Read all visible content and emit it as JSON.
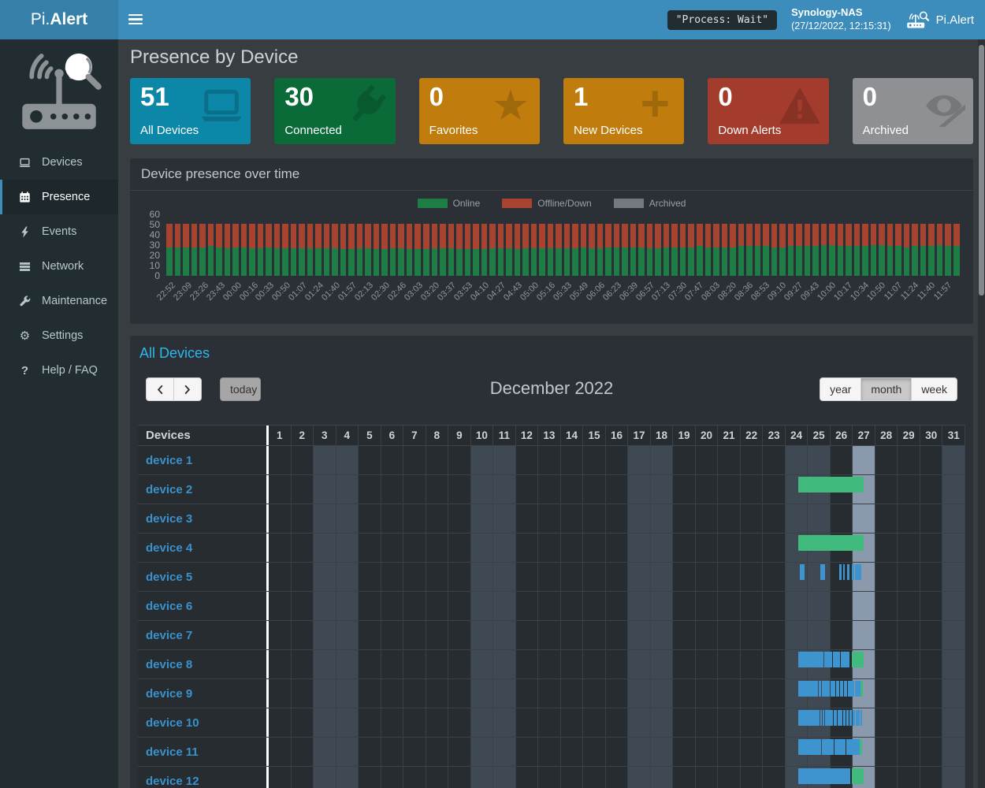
{
  "navbar": {
    "brand_prefix": "Pi.",
    "brand_suffix": "Alert",
    "process_status": "\"Process: Wait\"",
    "host_name": "Synology-NAS",
    "host_timestamp": "(27/12/2022, 12:15:31)",
    "app_name": "Pi.Alert"
  },
  "sidebar": {
    "items": [
      {
        "label": "Devices",
        "icon": "laptop-icon",
        "active": false
      },
      {
        "label": "Presence",
        "icon": "calendar-icon",
        "active": true
      },
      {
        "label": "Events",
        "icon": "bolt-icon",
        "active": false
      },
      {
        "label": "Network",
        "icon": "network-icon",
        "active": false
      },
      {
        "label": "Maintenance",
        "icon": "wrench-icon",
        "active": false
      },
      {
        "label": "Settings",
        "icon": "gear-icon",
        "active": false
      },
      {
        "label": "Help / FAQ",
        "icon": "question-icon",
        "active": false
      }
    ]
  },
  "page_title": "Presence by Device",
  "summary_cards": [
    {
      "value": "51",
      "label": "All Devices",
      "color": "#0d87a7",
      "icon": "laptop-icon"
    },
    {
      "value": "30",
      "label": "Connected",
      "color": "#0a6b38",
      "icon": "plug-icon"
    },
    {
      "value": "0",
      "label": "Favorites",
      "color": "#c07d0d",
      "icon": "star-icon"
    },
    {
      "value": "1",
      "label": "New Devices",
      "color": "#c07d0d",
      "icon": "plus-icon"
    },
    {
      "value": "0",
      "label": "Down Alerts",
      "color": "#a43c2d",
      "icon": "warning-icon"
    },
    {
      "value": "0",
      "label": "Archived",
      "color": "#8f9093",
      "icon": "eye-slash-icon"
    }
  ],
  "chart_data": {
    "type": "bar",
    "stacked": true,
    "title": "Device presence over time",
    "legend": [
      {
        "label": "Online",
        "color": "#1e7d45"
      },
      {
        "label": "Offline/Down",
        "color": "#a8432f"
      },
      {
        "label": "Archived",
        "color": "#75797d"
      }
    ],
    "y_ticks": [
      60,
      50,
      40,
      30,
      20,
      10,
      0
    ],
    "ylim": [
      0,
      60
    ],
    "stack_total": 51,
    "x_tick_labels": [
      "22:52",
      "23:09",
      "23:26",
      "23:43",
      "00:00",
      "00:16",
      "00:33",
      "00:50",
      "01:07",
      "01:24",
      "01:40",
      "01:57",
      "02:13",
      "02:30",
      "02:46",
      "03:03",
      "03:20",
      "03:37",
      "03:53",
      "04:10",
      "04:27",
      "04:43",
      "05:00",
      "05:16",
      "05:33",
      "05:49",
      "06:06",
      "06:23",
      "06:39",
      "06:57",
      "07:13",
      "07:30",
      "07:47",
      "08:03",
      "08:20",
      "08:36",
      "08:53",
      "09:10",
      "09:27",
      "09:43",
      "10:00",
      "10:17",
      "10:34",
      "10:50",
      "11:07",
      "11:24",
      "11:40",
      "11:57"
    ],
    "series": [
      {
        "name": "Online",
        "values": [
          28,
          28,
          28,
          28,
          28,
          29,
          28,
          27,
          28,
          28,
          27,
          27,
          28,
          27,
          27,
          27,
          27,
          27,
          27,
          27,
          27,
          26,
          26,
          27,
          27,
          26,
          26,
          27,
          27,
          26,
          26,
          26,
          27,
          27,
          27,
          26,
          26,
          26,
          26,
          27,
          27,
          27,
          26,
          27,
          27,
          27,
          27,
          27,
          27,
          27,
          28,
          27,
          27,
          28,
          28,
          28,
          28,
          28,
          27,
          27,
          28,
          28,
          28,
          28,
          29,
          28,
          28,
          28,
          28,
          29,
          29,
          29,
          29,
          28,
          28,
          29,
          29,
          29,
          29,
          30,
          30,
          29,
          29,
          29,
          29,
          30,
          30,
          29,
          29,
          28,
          29,
          29,
          29,
          30,
          29,
          29
        ]
      },
      {
        "name": "Offline/Down",
        "values_rule": "stack_total minus Online"
      },
      {
        "name": "Archived",
        "values_rule": "all zero"
      }
    ]
  },
  "calendar": {
    "section_title": "All Devices",
    "nav": {
      "today_label": "today"
    },
    "title": "December 2022",
    "view_buttons": [
      "year",
      "month",
      "week"
    ],
    "active_view": "month",
    "column_header": "Devices",
    "days_in_month": 31,
    "weekend_days": [
      3,
      4,
      10,
      11,
      17,
      18,
      24,
      25,
      31
    ],
    "today_day": 27,
    "colors": {
      "session": "#3e94cf",
      "online": "#41bb7d",
      "weekend_bg": "#3f4954",
      "today_bg": "#8b99ad"
    },
    "devices": [
      {
        "name": "device 1",
        "segments": []
      },
      {
        "name": "device 2",
        "segments": [
          {
            "start": 24.56,
            "end": 27.47,
            "type": "online"
          }
        ]
      },
      {
        "name": "device 3",
        "segments": []
      },
      {
        "name": "device 4",
        "segments": [
          {
            "start": 24.56,
            "end": 27.47,
            "type": "online"
          }
        ]
      },
      {
        "name": "device 5",
        "segments": [
          {
            "start": 24.62,
            "end": 24.83,
            "type": "session"
          },
          {
            "start": 25.56,
            "end": 25.77,
            "type": "session"
          },
          {
            "start": 26.4,
            "end": 26.48,
            "type": "session"
          },
          {
            "start": 26.56,
            "end": 26.64,
            "type": "session"
          },
          {
            "start": 26.74,
            "end": 26.86,
            "type": "session"
          },
          {
            "start": 26.96,
            "end": 27.07,
            "type": "session"
          },
          {
            "start": 27.1,
            "end": 27.18,
            "type": "session"
          },
          {
            "start": 27.21,
            "end": 27.38,
            "type": "session"
          }
        ]
      },
      {
        "name": "device 6",
        "segments": []
      },
      {
        "name": "device 7",
        "segments": []
      },
      {
        "name": "device 8",
        "segments": [
          {
            "start": 24.56,
            "end": 25.7,
            "type": "session"
          },
          {
            "start": 25.74,
            "end": 26.07,
            "type": "session"
          },
          {
            "start": 26.1,
            "end": 26.42,
            "type": "session"
          },
          {
            "start": 26.45,
            "end": 26.69,
            "type": "session"
          },
          {
            "start": 26.72,
            "end": 26.84,
            "type": "session"
          },
          {
            "start": 26.95,
            "end": 27.47,
            "type": "online"
          }
        ]
      },
      {
        "name": "device 9",
        "segments": [
          {
            "start": 24.56,
            "end": 25.46,
            "type": "session"
          },
          {
            "start": 25.49,
            "end": 25.58,
            "type": "session"
          },
          {
            "start": 25.61,
            "end": 25.96,
            "type": "session"
          },
          {
            "start": 25.99,
            "end": 26.21,
            "type": "session"
          },
          {
            "start": 26.24,
            "end": 26.39,
            "type": "session"
          },
          {
            "start": 26.42,
            "end": 26.57,
            "type": "session"
          },
          {
            "start": 26.6,
            "end": 26.73,
            "type": "session"
          },
          {
            "start": 26.76,
            "end": 26.9,
            "type": "session"
          },
          {
            "start": 26.93,
            "end": 27.07,
            "type": "session"
          },
          {
            "start": 27.1,
            "end": 27.32,
            "type": "session"
          },
          {
            "start": 27.34,
            "end": 27.44,
            "type": "online"
          }
        ]
      },
      {
        "name": "device 10",
        "segments": [
          {
            "start": 24.56,
            "end": 25.53,
            "type": "session"
          },
          {
            "start": 25.56,
            "end": 25.63,
            "type": "session"
          },
          {
            "start": 25.66,
            "end": 25.74,
            "type": "session"
          },
          {
            "start": 25.77,
            "end": 26.12,
            "type": "session"
          },
          {
            "start": 26.15,
            "end": 26.3,
            "type": "session"
          },
          {
            "start": 26.33,
            "end": 26.54,
            "type": "session"
          },
          {
            "start": 26.57,
            "end": 26.67,
            "type": "session"
          },
          {
            "start": 26.7,
            "end": 26.81,
            "type": "session"
          },
          {
            "start": 26.84,
            "end": 26.95,
            "type": "session"
          },
          {
            "start": 26.98,
            "end": 27.08,
            "type": "session"
          },
          {
            "start": 27.11,
            "end": 27.18,
            "type": "session"
          },
          {
            "start": 27.21,
            "end": 27.3,
            "type": "session"
          },
          {
            "start": 27.33,
            "end": 27.39,
            "type": "session"
          }
        ]
      },
      {
        "name": "device 11",
        "segments": [
          {
            "start": 24.56,
            "end": 25.59,
            "type": "session"
          },
          {
            "start": 25.62,
            "end": 26.14,
            "type": "session"
          },
          {
            "start": 26.17,
            "end": 26.67,
            "type": "session"
          },
          {
            "start": 26.7,
            "end": 27.29,
            "type": "session"
          },
          {
            "start": 27.31,
            "end": 27.42,
            "type": "online"
          }
        ]
      },
      {
        "name": "device 12",
        "segments": [
          {
            "start": 24.58,
            "end": 25.71,
            "type": "session"
          },
          {
            "start": 25.74,
            "end": 26.88,
            "type": "session"
          },
          {
            "start": 26.95,
            "end": 27.47,
            "type": "online"
          }
        ]
      }
    ]
  }
}
